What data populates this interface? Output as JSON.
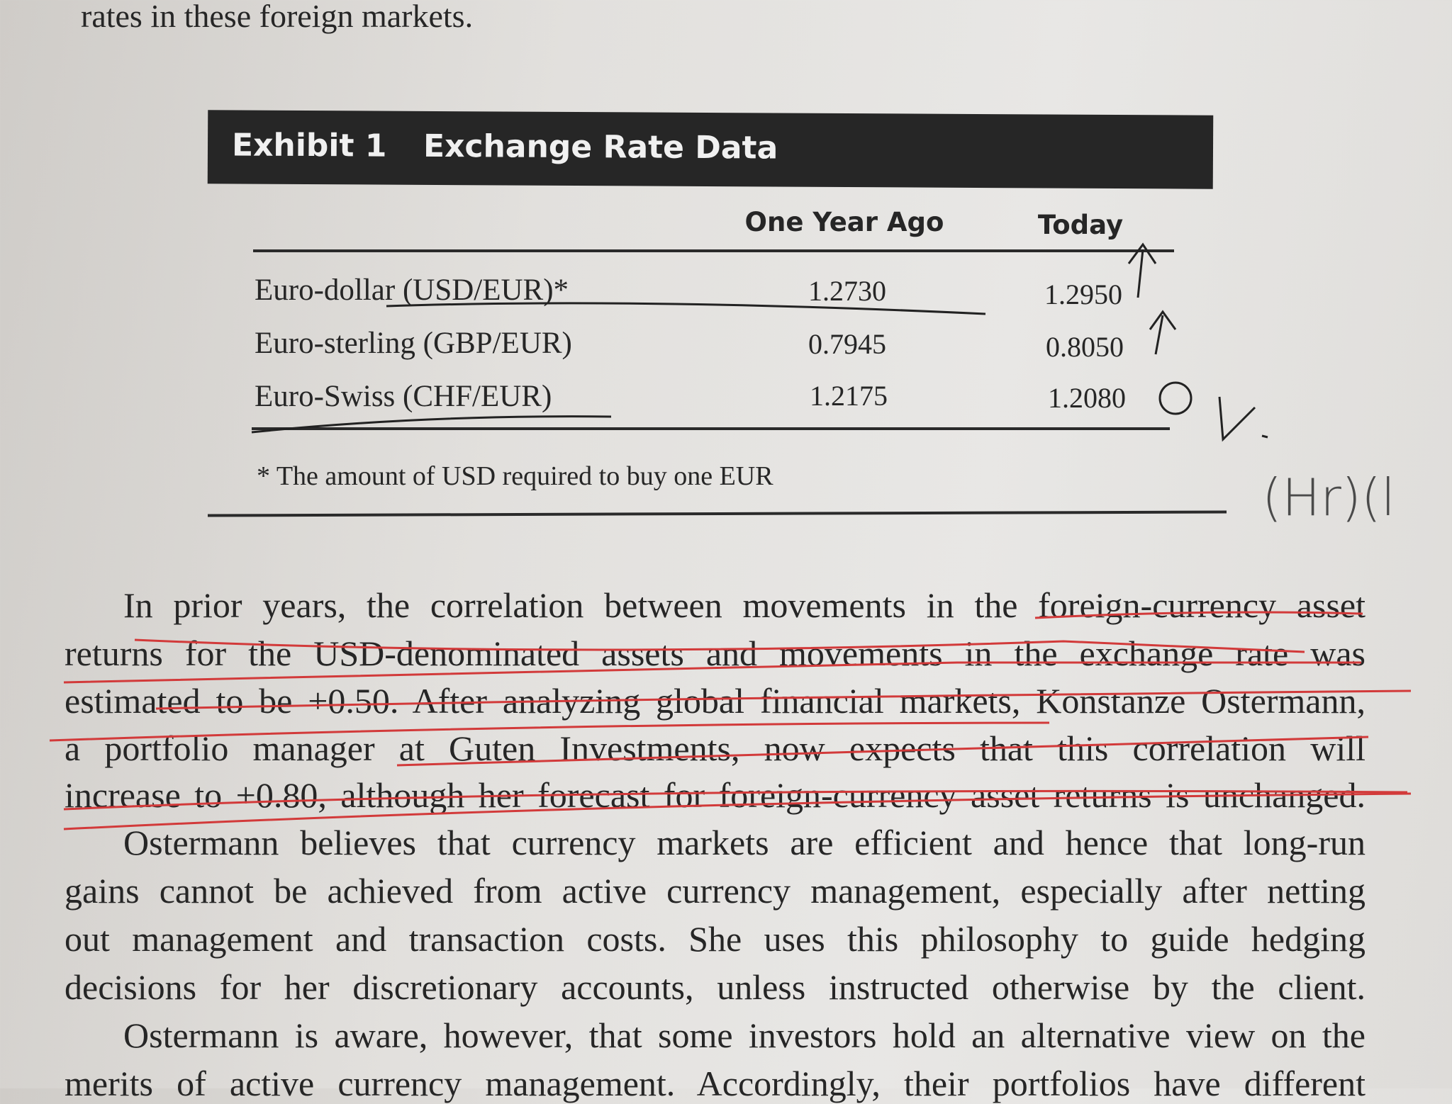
{
  "intro_fragment": "rates in these foreign markets.",
  "exhibit": {
    "number": "Exhibit 1",
    "title": "Exchange Rate Data",
    "columns": [
      "One Year Ago",
      "Today"
    ],
    "rows": [
      {
        "label": "Euro-dollar (USD/EUR)*",
        "one_year_ago": "1.2730",
        "today": "1.2950"
      },
      {
        "label": "Euro-sterling (GBP/EUR)",
        "one_year_ago": "0.7945",
        "today": "0.8050"
      },
      {
        "label": "Euro-Swiss (CHF/EUR)",
        "one_year_ago": "1.2175",
        "today": "1.2080"
      }
    ],
    "footnote": "* The amount of USD required to buy one EUR"
  },
  "handwriting": {
    "margin_note": "(Hr)(l"
  },
  "paragraph_lines": [
    "In prior years, the correlation between movements in the foreign-currency asset",
    "returns for the USD-denominated assets and movements in the exchange rate was",
    "estimated to be +0.50. After analyzing global financial markets, Konstanze Ostermann,",
    "a portfolio manager at Guten Investments, now expects that this correlation will",
    "increase to +0.80, although her forecast for foreign-currency asset returns is unchanged.",
    "Ostermann believes that currency markets are efficient and hence that long-run",
    "gains cannot be achieved from active currency management, especially after netting",
    "out management and transaction costs. She uses this philosophy to guide hedging",
    "decisions for her discretionary accounts, unless instructed otherwise by the client.",
    "Ostermann is aware, however, that some investors hold an alternative view on the",
    "merits of active currency management. Accordingly, their portfolios have different"
  ]
}
